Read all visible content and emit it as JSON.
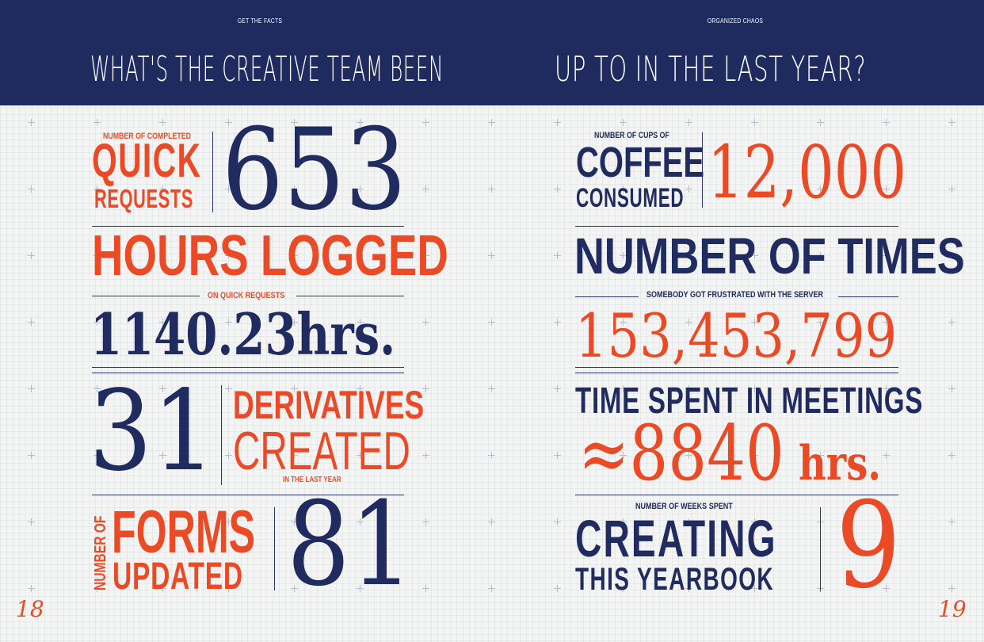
{
  "header": {
    "left_eyebrow": "GET THE FACTS",
    "right_eyebrow": "ORGANIZED CHAOS",
    "left_title": "WHAT'S THE CREATIVE TEAM BEEN",
    "right_title": "UP TO IN THE LAST YEAR?"
  },
  "left": {
    "quick": {
      "small": "NUMBER OF COMPLETED",
      "big": "QUICK",
      "sub": "REQUESTS",
      "value": "653"
    },
    "hours": {
      "title": "HOURS LOGGED",
      "caption": "ON QUICK REQUESTS",
      "value": "1140.23hrs."
    },
    "derivatives": {
      "value": "31",
      "line1": "DERIVATIVES",
      "line2": "CREATED",
      "caption": "IN THE LAST YEAR"
    },
    "forms": {
      "vertical": "NUMBER OF",
      "line1": "FORMS",
      "line2": "UPDATED",
      "value": "81"
    },
    "page_number": "18"
  },
  "right": {
    "coffee": {
      "small": "NUMBER OF CUPS OF",
      "big": "COFFEE",
      "sub": "CONSUMED",
      "value": "12,000"
    },
    "times": {
      "title": "NUMBER OF TIMES",
      "caption": "SOMEBODY GOT FRUSTRATED WITH THE SERVER",
      "value": "153,453,799"
    },
    "meetings": {
      "title": "TIME SPENT IN MEETINGS",
      "value_number": "≈8840",
      "value_unit": "hrs."
    },
    "yearbook": {
      "small": "NUMBER OF WEEKS SPENT",
      "line1": "CREATING",
      "line2": "THIS YEARBOOK",
      "value": "9"
    },
    "page_number": "19"
  },
  "colors": {
    "navy": "#1f2b5e",
    "orange": "#ea4b26",
    "paper": "#f4f4f3"
  }
}
